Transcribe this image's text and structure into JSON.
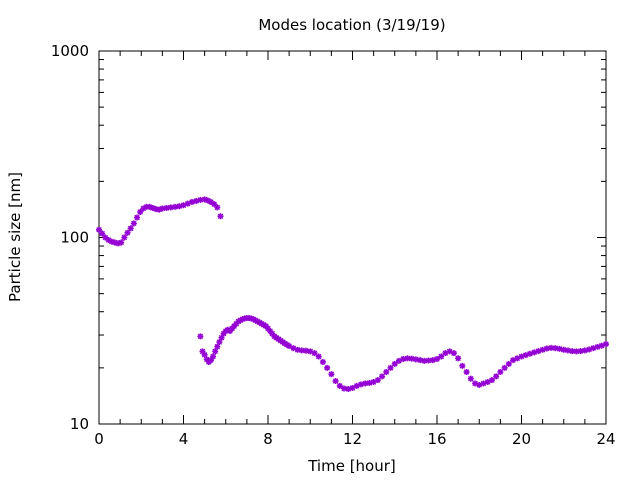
{
  "chart_data": {
    "type": "scatter",
    "title": "Modes location (3/19/19)",
    "xlabel": "Time [hour]",
    "ylabel": "Particle size [nm]",
    "xlim": [
      0,
      24
    ],
    "ylim": [
      10,
      1000
    ],
    "yscale": "log",
    "x_ticks": [
      "0",
      "4",
      "8",
      "12",
      "16",
      "20",
      "24"
    ],
    "y_ticks": [
      "10",
      "100",
      "1000"
    ],
    "grid": false,
    "legend": "none",
    "marker_color": "#9400D3",
    "series": [
      {
        "x": [
          0.0,
          0.15,
          0.3,
          0.45,
          0.6,
          0.75,
          0.9,
          1.05,
          1.2,
          1.35,
          1.5,
          1.65,
          1.8,
          1.95,
          2.1,
          2.25,
          2.4,
          2.55,
          2.7,
          2.85,
          3.0,
          3.2,
          3.4,
          3.6,
          3.8,
          4.0,
          4.2,
          4.4,
          4.6,
          4.8,
          5.0,
          5.15,
          5.3,
          5.45,
          5.6,
          5.75
        ],
        "y": [
          110,
          105,
          100,
          97,
          95,
          94,
          93,
          94,
          100,
          106,
          112,
          119,
          128,
          137,
          143,
          146,
          146,
          144,
          142,
          141,
          143,
          144,
          145,
          146,
          147,
          149,
          152,
          155,
          157,
          159,
          160,
          158,
          155,
          151,
          145,
          130
        ]
      },
      {
        "x": [
          4.8,
          4.9,
          5.0,
          5.1,
          5.2,
          5.3,
          5.4,
          5.5,
          5.6,
          5.7,
          5.8,
          5.9,
          6.0,
          6.1,
          6.2,
          6.3,
          6.4,
          6.5,
          6.6,
          6.7,
          6.8,
          6.9,
          7.0,
          7.1,
          7.2,
          7.3,
          7.4,
          7.5,
          7.6,
          7.7,
          7.8,
          7.9,
          8.0,
          8.1,
          8.2,
          8.3,
          8.4,
          8.5,
          8.6,
          8.7,
          8.8,
          8.9,
          9.0,
          9.2,
          9.4,
          9.6,
          9.8,
          10.0,
          10.2,
          10.4,
          10.6,
          10.8,
          11.0,
          11.2,
          11.4,
          11.6,
          11.8,
          12.0,
          12.2,
          12.4,
          12.6,
          12.8,
          13.0,
          13.2,
          13.4,
          13.6,
          13.8,
          14.0,
          14.2,
          14.4,
          14.6,
          14.8,
          15.0,
          15.2,
          15.4,
          15.6,
          15.8,
          16.0,
          16.2,
          16.4,
          16.6,
          16.8,
          17.0,
          17.2,
          17.4,
          17.6,
          17.8,
          18.0,
          18.2,
          18.4,
          18.6,
          18.8,
          19.0,
          19.2,
          19.4,
          19.6,
          19.8,
          20.0,
          20.2,
          20.4,
          20.6,
          20.8,
          21.0,
          21.2,
          21.4,
          21.6,
          21.8,
          22.0,
          22.2,
          22.4,
          22.6,
          22.8,
          23.0,
          23.2,
          23.4,
          23.6,
          23.8,
          24.0
        ],
        "y": [
          29.5,
          24.5,
          23.5,
          22.2,
          21.5,
          22.0,
          23.0,
          24.5,
          26.0,
          27.5,
          29.0,
          30.5,
          31.5,
          32.0,
          31.5,
          32.5,
          33.5,
          34.5,
          35.5,
          36.0,
          36.5,
          36.8,
          37.0,
          37.0,
          36.8,
          36.5,
          36.0,
          35.5,
          35.0,
          34.5,
          34.0,
          33.5,
          32.5,
          31.5,
          30.5,
          29.5,
          29.0,
          28.5,
          28.0,
          27.5,
          27.0,
          26.6,
          26.2,
          25.5,
          25.0,
          24.8,
          24.7,
          24.5,
          24.0,
          23.0,
          21.5,
          20.0,
          18.5,
          17.0,
          16.0,
          15.5,
          15.4,
          15.6,
          16.0,
          16.3,
          16.5,
          16.6,
          16.8,
          17.2,
          18.0,
          19.0,
          20.0,
          21.0,
          21.8,
          22.3,
          22.5,
          22.4,
          22.2,
          22.0,
          21.8,
          21.9,
          22.0,
          22.3,
          23.0,
          24.0,
          24.5,
          24.0,
          22.5,
          20.5,
          19.0,
          17.5,
          16.5,
          16.2,
          16.5,
          16.8,
          17.2,
          18.0,
          19.0,
          20.0,
          21.0,
          22.0,
          22.5,
          23.0,
          23.4,
          23.8,
          24.2,
          24.6,
          25.0,
          25.4,
          25.6,
          25.5,
          25.3,
          25.0,
          24.8,
          24.6,
          24.5,
          24.6,
          24.8,
          25.1,
          25.5,
          25.9,
          26.3,
          26.8
        ]
      }
    ]
  }
}
